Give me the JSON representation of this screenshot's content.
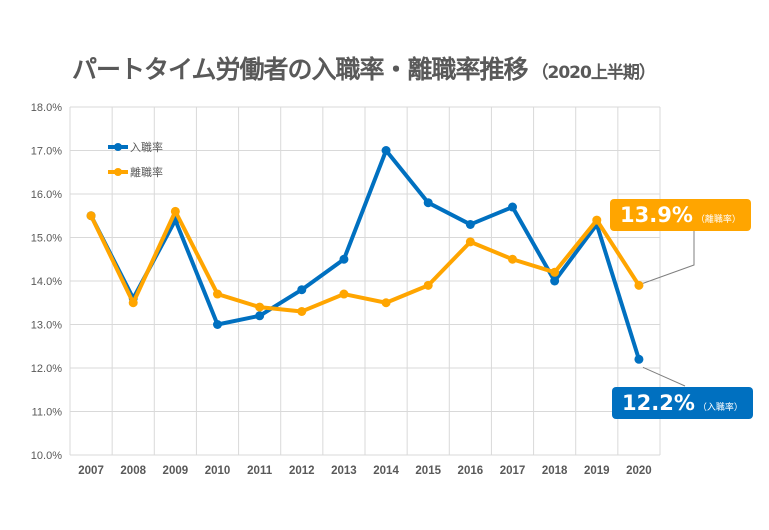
{
  "title": "パートタイム労働者の入職率・離職率推移",
  "subtitle": "（2020上半期）",
  "colors": {
    "entry": "#0070C0",
    "separation": "#FFA500"
  },
  "chart_data": {
    "type": "line",
    "title": "パートタイム労働者の入職率・離職率推移（2020上半期）",
    "categories": [
      "2007",
      "2008",
      "2009",
      "2010",
      "2011",
      "2012",
      "2013",
      "2014",
      "2015",
      "2016",
      "2017",
      "2018",
      "2019",
      "2020"
    ],
    "series": [
      {
        "name": "入職率",
        "color": "#0070C0",
        "values": [
          15.5,
          13.6,
          15.4,
          13.0,
          13.2,
          13.8,
          14.5,
          17.0,
          15.8,
          15.3,
          15.7,
          14.0,
          15.3,
          12.2
        ]
      },
      {
        "name": "離職率",
        "color": "#FFA500",
        "values": [
          15.5,
          13.5,
          15.6,
          13.7,
          13.4,
          13.3,
          13.7,
          13.5,
          13.9,
          14.9,
          14.5,
          14.2,
          15.4,
          13.9
        ]
      }
    ],
    "ylim": [
      10,
      18
    ],
    "yticks": [
      "10.0%",
      "11.0%",
      "12.0%",
      "13.0%",
      "14.0%",
      "15.0%",
      "16.0%",
      "17.0%",
      "18.0%"
    ],
    "grid": true,
    "legend": "top-left",
    "annotations": [
      {
        "value": "13.9%",
        "label": "（離職率）",
        "series": "離職率"
      },
      {
        "value": "12.2%",
        "label": "（入職率）",
        "series": "入職率"
      }
    ]
  }
}
